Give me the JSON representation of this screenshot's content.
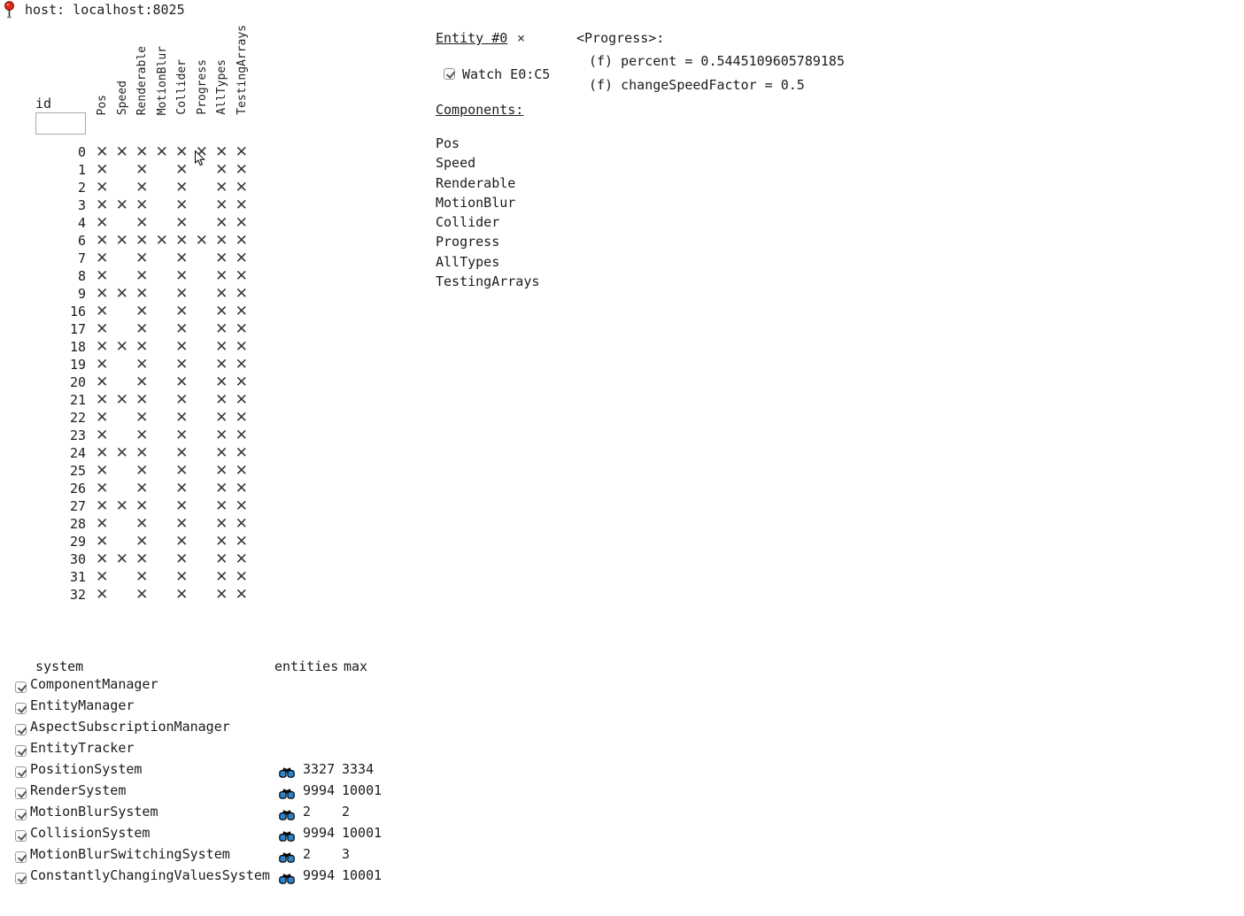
{
  "header": {
    "host_label": "host: localhost:8025"
  },
  "colors": {
    "binocular_blue": "#2f82cc",
    "pin_red": "#e02818",
    "text": "#1c1c1c",
    "mark_gray": "#3a3a3a"
  },
  "matrix": {
    "id_label": "id",
    "id_input_value": "",
    "mark": "✕",
    "columns": [
      "Pos",
      "Speed",
      "Renderable",
      "MotionBlur",
      "Collider",
      "Progress",
      "AllTypes",
      "TestingArrays"
    ],
    "rows": [
      {
        "id": "0",
        "marks": [
          1,
          1,
          1,
          1,
          1,
          1,
          1,
          1
        ]
      },
      {
        "id": "1",
        "marks": [
          1,
          0,
          1,
          0,
          1,
          0,
          1,
          1
        ]
      },
      {
        "id": "2",
        "marks": [
          1,
          0,
          1,
          0,
          1,
          0,
          1,
          1
        ]
      },
      {
        "id": "3",
        "marks": [
          1,
          1,
          1,
          0,
          1,
          0,
          1,
          1
        ]
      },
      {
        "id": "4",
        "marks": [
          1,
          0,
          1,
          0,
          1,
          0,
          1,
          1
        ]
      },
      {
        "id": "6",
        "marks": [
          1,
          1,
          1,
          1,
          1,
          1,
          1,
          1
        ]
      },
      {
        "id": "7",
        "marks": [
          1,
          0,
          1,
          0,
          1,
          0,
          1,
          1
        ]
      },
      {
        "id": "8",
        "marks": [
          1,
          0,
          1,
          0,
          1,
          0,
          1,
          1
        ]
      },
      {
        "id": "9",
        "marks": [
          1,
          1,
          1,
          0,
          1,
          0,
          1,
          1
        ]
      },
      {
        "id": "16",
        "marks": [
          1,
          0,
          1,
          0,
          1,
          0,
          1,
          1
        ]
      },
      {
        "id": "17",
        "marks": [
          1,
          0,
          1,
          0,
          1,
          0,
          1,
          1
        ]
      },
      {
        "id": "18",
        "marks": [
          1,
          1,
          1,
          0,
          1,
          0,
          1,
          1
        ]
      },
      {
        "id": "19",
        "marks": [
          1,
          0,
          1,
          0,
          1,
          0,
          1,
          1
        ]
      },
      {
        "id": "20",
        "marks": [
          1,
          0,
          1,
          0,
          1,
          0,
          1,
          1
        ]
      },
      {
        "id": "21",
        "marks": [
          1,
          1,
          1,
          0,
          1,
          0,
          1,
          1
        ]
      },
      {
        "id": "22",
        "marks": [
          1,
          0,
          1,
          0,
          1,
          0,
          1,
          1
        ]
      },
      {
        "id": "23",
        "marks": [
          1,
          0,
          1,
          0,
          1,
          0,
          1,
          1
        ]
      },
      {
        "id": "24",
        "marks": [
          1,
          1,
          1,
          0,
          1,
          0,
          1,
          1
        ]
      },
      {
        "id": "25",
        "marks": [
          1,
          0,
          1,
          0,
          1,
          0,
          1,
          1
        ]
      },
      {
        "id": "26",
        "marks": [
          1,
          0,
          1,
          0,
          1,
          0,
          1,
          1
        ]
      },
      {
        "id": "27",
        "marks": [
          1,
          1,
          1,
          0,
          1,
          0,
          1,
          1
        ]
      },
      {
        "id": "28",
        "marks": [
          1,
          0,
          1,
          0,
          1,
          0,
          1,
          1
        ]
      },
      {
        "id": "29",
        "marks": [
          1,
          0,
          1,
          0,
          1,
          0,
          1,
          1
        ]
      },
      {
        "id": "30",
        "marks": [
          1,
          1,
          1,
          0,
          1,
          0,
          1,
          1
        ]
      },
      {
        "id": "31",
        "marks": [
          1,
          0,
          1,
          0,
          1,
          0,
          1,
          1
        ]
      },
      {
        "id": "32",
        "marks": [
          1,
          0,
          1,
          0,
          1,
          0,
          1,
          1
        ]
      }
    ]
  },
  "entity_panel": {
    "title": "Entity #0",
    "close_label": "×",
    "watch_label": "Watch E0:C5",
    "watch_checked": true,
    "components_heading": "Components:",
    "components": [
      "Pos",
      "Speed",
      "Renderable",
      "MotionBlur",
      "Collider",
      "Progress",
      "AllTypes",
      "TestingArrays"
    ]
  },
  "progress_panel": {
    "heading": "<Progress>:",
    "fields": [
      "(f) percent = 0.5445109605789185",
      "(f) changeSpeedFactor = 0.5"
    ]
  },
  "systems_panel": {
    "headers": {
      "system": "system",
      "entities": "entities",
      "max": "max"
    },
    "rows": [
      {
        "name": "ComponentManager",
        "checked": true,
        "watch": false,
        "entities": "",
        "max": ""
      },
      {
        "name": "EntityManager",
        "checked": true,
        "watch": false,
        "entities": "",
        "max": ""
      },
      {
        "name": "AspectSubscriptionManager",
        "checked": true,
        "watch": false,
        "entities": "",
        "max": ""
      },
      {
        "name": "EntityTracker",
        "checked": true,
        "watch": false,
        "entities": "",
        "max": ""
      },
      {
        "name": "PositionSystem",
        "checked": true,
        "watch": true,
        "entities": "3327",
        "max": "3334"
      },
      {
        "name": "RenderSystem",
        "checked": true,
        "watch": true,
        "entities": "9994",
        "max": "10001"
      },
      {
        "name": "MotionBlurSystem",
        "checked": true,
        "watch": true,
        "entities": "2",
        "max": "2"
      },
      {
        "name": "CollisionSystem",
        "checked": true,
        "watch": true,
        "entities": "9994",
        "max": "10001"
      },
      {
        "name": "MotionBlurSwitchingSystem",
        "checked": true,
        "watch": true,
        "entities": "2",
        "max": "3"
      },
      {
        "name": "ConstantlyChangingValuesSystem",
        "checked": true,
        "watch": true,
        "entities": "9994",
        "max": "10001"
      }
    ]
  }
}
